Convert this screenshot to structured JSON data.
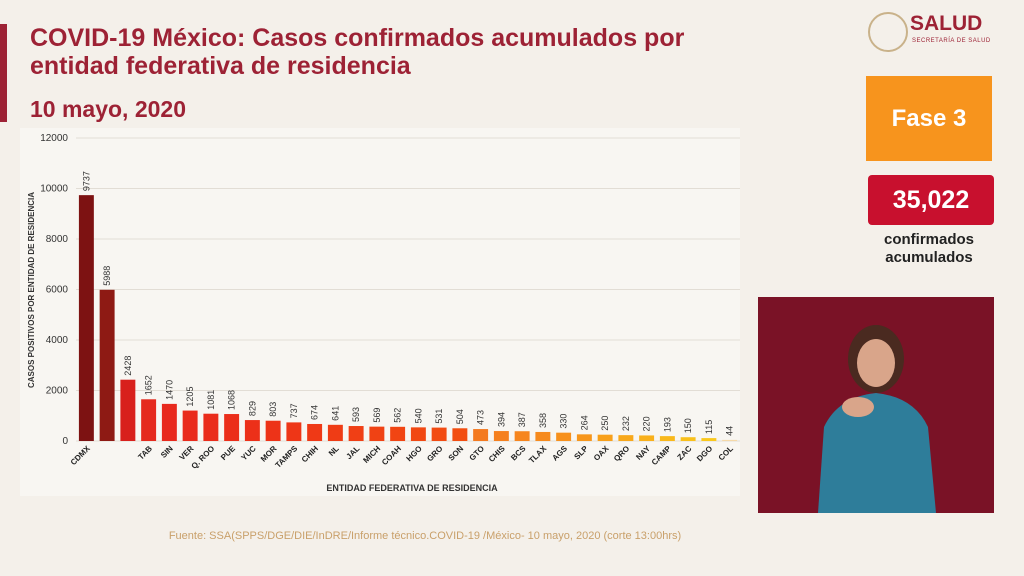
{
  "chart_data": {
    "type": "bar",
    "title": "COVID-19 México: Casos confirmados acumulados por entidad federativa de residencia",
    "subtitle": "10 mayo, 2020",
    "xlabel": "ENTIDAD FEDERATIVA DE RESIDENCIA",
    "ylabel": "CASOS POSITIVOS POR ENTIDAD DE RESIDENCIA",
    "categories": [
      "CDMX",
      null,
      null,
      "TAB",
      "SIN",
      "VER",
      "Q. ROO",
      "PUE",
      "YUC",
      "MOR",
      "TAMPS",
      "CHIH",
      "NL",
      "JAL",
      "MICH",
      "COAH",
      "HGO",
      "GRO",
      "SON",
      "GTO",
      "CHIS",
      "BCS",
      "TLAX",
      "AGS",
      "SLP",
      "OAX",
      "QRO",
      "NAY",
      "CAMP",
      "ZAC",
      "DGO",
      "COL"
    ],
    "values": [
      9737,
      5988,
      2428,
      1652,
      1470,
      1205,
      1081,
      1068,
      829,
      803,
      737,
      674,
      641,
      593,
      569,
      562,
      540,
      531,
      504,
      473,
      394,
      387,
      358,
      330,
      264,
      250,
      232,
      220,
      193,
      150,
      115,
      44
    ],
    "colors": [
      "#7d1212",
      "#8e1a14",
      "#d8201c",
      "#e52a1e",
      "#e8291d",
      "#e92b1c",
      "#ea2c1b",
      "#eb2e1a",
      "#ec3019",
      "#ed3318",
      "#ee3617",
      "#ef3916",
      "#ef3c15",
      "#f03f15",
      "#f04214",
      "#f14513",
      "#f14812",
      "#f24b12",
      "#f24e11",
      "#f47a20",
      "#f5801f",
      "#f6851e",
      "#f68a1d",
      "#f7901c",
      "#f7961b",
      "#f8a01a",
      "#f8a81a",
      "#f9b01a",
      "#f9b81a",
      "#f9c01b",
      "#fac81c",
      "#f5d9a8"
    ],
    "ylim": [
      0,
      12000
    ],
    "yticks": [
      0,
      2000,
      4000,
      6000,
      8000,
      10000,
      12000
    ],
    "grid": true
  },
  "phase": "Fase 3",
  "total": "35,022",
  "total_caption": "confirmados acumulados",
  "logo": {
    "name": "SALUD",
    "subtitle": "SECRETARÍA DE SALUD"
  },
  "source": "Fuente: SSA(SPPS/DGE/DIE/InDRE/Informe técnico.COVID-19 /México- 10 mayo, 2020 (corte 13:00hrs)"
}
